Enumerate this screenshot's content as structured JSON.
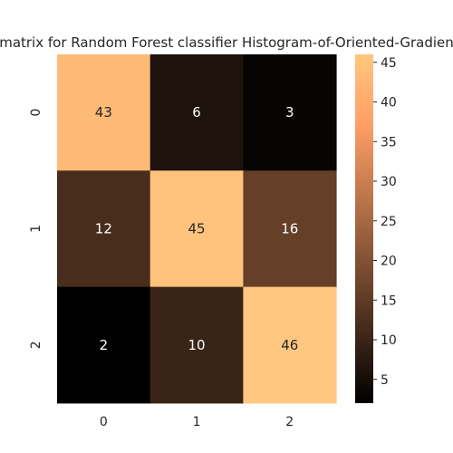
{
  "chart_data": {
    "type": "heatmap",
    "title": "matrix for Random Forest classifier    Histogram-of-Oriented-Gradien",
    "x_categories": [
      "0",
      "1",
      "2"
    ],
    "y_categories": [
      "0",
      "1",
      "2"
    ],
    "values": [
      [
        43,
        6,
        3
      ],
      [
        12,
        45,
        16
      ],
      [
        2,
        10,
        46
      ]
    ],
    "colormap": "copper",
    "colorbar": {
      "min": 2,
      "max": 46,
      "ticks": [
        "5",
        "10",
        "15",
        "20",
        "25",
        "30",
        "35",
        "40",
        "45"
      ]
    },
    "grid": false
  }
}
